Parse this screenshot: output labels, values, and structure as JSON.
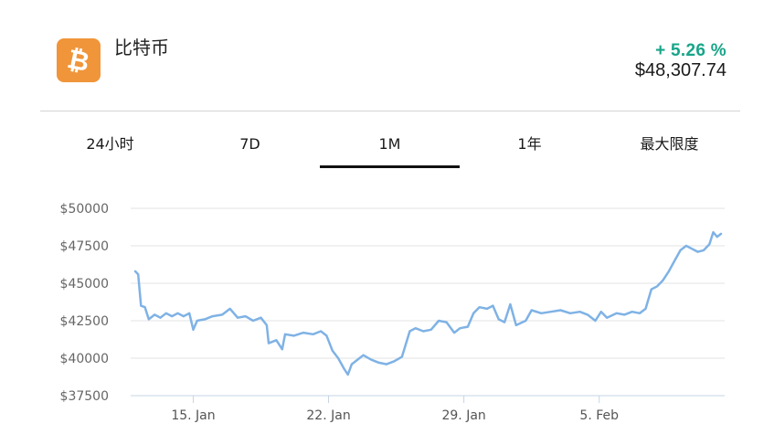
{
  "coin": {
    "name": "比特币",
    "logo_symbol": "₿",
    "logo_color": "#f0953a",
    "change": "+ 5.26 %",
    "change_color": "#17a589",
    "price": "$48,307.74"
  },
  "tabs": [
    {
      "label": "24小时",
      "active": false
    },
    {
      "label": "7D",
      "active": false
    },
    {
      "label": "1M",
      "active": true
    },
    {
      "label": "1年",
      "active": false
    },
    {
      "label": "最大限度",
      "active": false
    }
  ],
  "chart_data": {
    "type": "line",
    "line_color": "#7fb2e5",
    "ylim": [
      37500,
      50000
    ],
    "y_ticks": [
      37500,
      40000,
      42500,
      45000,
      47500,
      50000
    ],
    "y_tick_labels": [
      "$37500",
      "$40000",
      "$42500",
      "$45000",
      "$47500",
      "$50000"
    ],
    "x_tick_labels": [
      "15. Jan",
      "22. Jan",
      "29. Jan",
      "5. Feb"
    ],
    "x_tick_positions": [
      3.0,
      10.0,
      17.0,
      24.0
    ],
    "grid": true,
    "series": [
      {
        "points": [
          [
            0.0,
            45800
          ],
          [
            0.15,
            45600
          ],
          [
            0.3,
            43500
          ],
          [
            0.5,
            43400
          ],
          [
            0.7,
            42600
          ],
          [
            1.0,
            42900
          ],
          [
            1.3,
            42700
          ],
          [
            1.6,
            43000
          ],
          [
            1.9,
            42800
          ],
          [
            2.2,
            43000
          ],
          [
            2.5,
            42800
          ],
          [
            2.8,
            43000
          ],
          [
            3.0,
            41900
          ],
          [
            3.2,
            42500
          ],
          [
            3.6,
            42600
          ],
          [
            4.0,
            42800
          ],
          [
            4.5,
            42900
          ],
          [
            4.9,
            43300
          ],
          [
            5.3,
            42700
          ],
          [
            5.7,
            42800
          ],
          [
            6.1,
            42500
          ],
          [
            6.5,
            42700
          ],
          [
            6.8,
            42200
          ],
          [
            6.9,
            41000
          ],
          [
            7.3,
            41200
          ],
          [
            7.6,
            40600
          ],
          [
            7.75,
            41600
          ],
          [
            8.2,
            41500
          ],
          [
            8.7,
            41700
          ],
          [
            9.2,
            41600
          ],
          [
            9.6,
            41800
          ],
          [
            9.9,
            41500
          ],
          [
            10.2,
            40500
          ],
          [
            10.5,
            40000
          ],
          [
            10.8,
            39300
          ],
          [
            11.0,
            38900
          ],
          [
            11.2,
            39600
          ],
          [
            11.5,
            39900
          ],
          [
            11.8,
            40200
          ],
          [
            12.2,
            39900
          ],
          [
            12.6,
            39700
          ],
          [
            13.0,
            39600
          ],
          [
            13.4,
            39800
          ],
          [
            13.8,
            40100
          ],
          [
            14.2,
            41800
          ],
          [
            14.5,
            42000
          ],
          [
            14.9,
            41800
          ],
          [
            15.3,
            41900
          ],
          [
            15.7,
            42500
          ],
          [
            16.1,
            42400
          ],
          [
            16.5,
            41700
          ],
          [
            16.8,
            42000
          ],
          [
            17.2,
            42100
          ],
          [
            17.5,
            43000
          ],
          [
            17.8,
            43400
          ],
          [
            18.2,
            43300
          ],
          [
            18.5,
            43500
          ],
          [
            18.8,
            42600
          ],
          [
            19.1,
            42400
          ],
          [
            19.4,
            43600
          ],
          [
            19.7,
            42200
          ],
          [
            20.2,
            42500
          ],
          [
            20.5,
            43200
          ],
          [
            21.0,
            43000
          ],
          [
            21.5,
            43100
          ],
          [
            22.0,
            43200
          ],
          [
            22.5,
            43000
          ],
          [
            23.0,
            43100
          ],
          [
            23.4,
            42900
          ],
          [
            23.8,
            42500
          ],
          [
            24.1,
            43100
          ],
          [
            24.4,
            42700
          ],
          [
            24.9,
            43000
          ],
          [
            25.3,
            42900
          ],
          [
            25.7,
            43100
          ],
          [
            26.1,
            43000
          ],
          [
            26.4,
            43300
          ],
          [
            26.7,
            44600
          ],
          [
            27.0,
            44800
          ],
          [
            27.3,
            45200
          ],
          [
            27.6,
            45800
          ],
          [
            27.9,
            46500
          ],
          [
            28.2,
            47200
          ],
          [
            28.5,
            47500
          ],
          [
            28.8,
            47300
          ],
          [
            29.1,
            47100
          ],
          [
            29.4,
            47200
          ],
          [
            29.7,
            47600
          ],
          [
            29.9,
            48400
          ],
          [
            30.1,
            48100
          ],
          [
            30.3,
            48300
          ]
        ]
      }
    ]
  }
}
